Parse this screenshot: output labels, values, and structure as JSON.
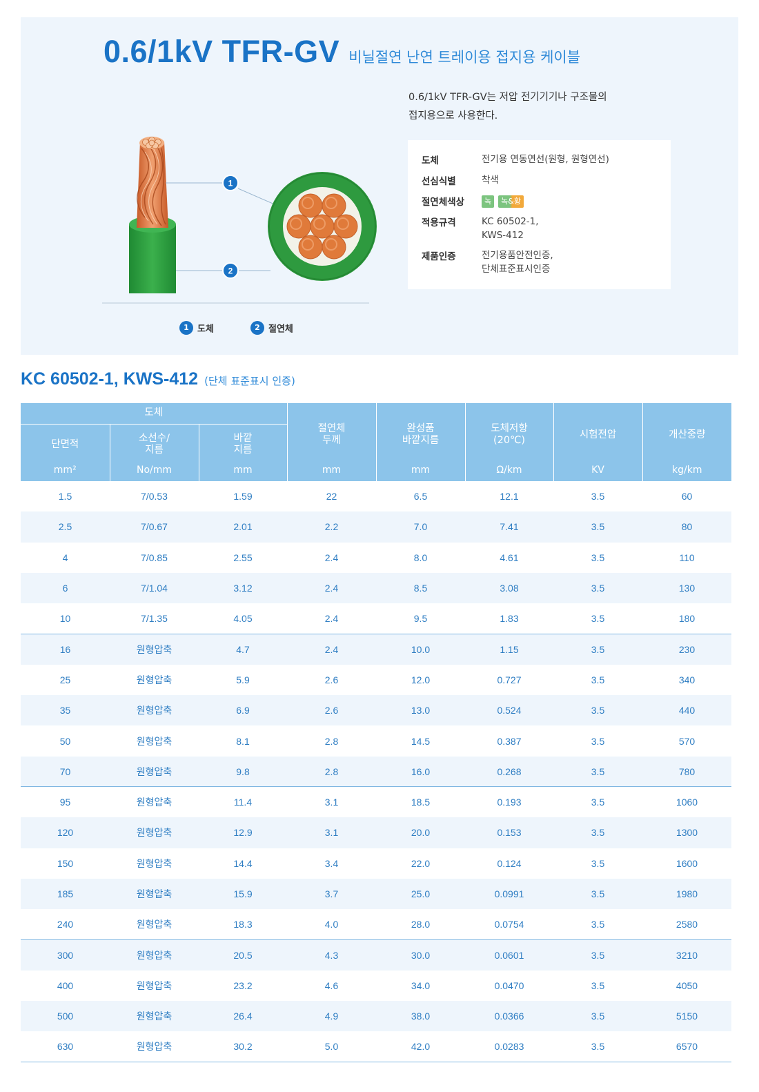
{
  "product": {
    "title": "0.6/1kV TFR-GV",
    "subtitle": "비닐절연 난연 트레이용 접지용 케이블",
    "intro_line1": "0.6/1kV TFR-GV는 저압 전기기기나 구조물의",
    "intro_line2": "접지용으로 사용한다."
  },
  "specs": {
    "conductor_label": "도체",
    "conductor_value": "전기용 연동연선(원형, 원형연선)",
    "core_id_label": "선심식별",
    "core_id_value": "착색",
    "insulation_color_label": "절연체색상",
    "badge_green": "녹",
    "badge_green_yellow": "녹&황",
    "standard_label": "적용규격",
    "standard_value_1": "KC 60502-1,",
    "standard_value_2": "KWS-412",
    "cert_label": "제품인증",
    "cert_value_1": "전기용품안전인증,",
    "cert_value_2": "단체표준표시인증"
  },
  "diagram": {
    "callout_1": "1",
    "callout_2": "2",
    "legend_1_num": "1",
    "legend_1_text": "도체",
    "legend_2_num": "2",
    "legend_2_text": "절연체",
    "colors": {
      "copper": "#e07a3a",
      "insulation": "#2e9a3f",
      "accent": "#1a73c6"
    }
  },
  "standard_section": {
    "title": "KC 60502-1, KWS-412",
    "subtitle": "(단체 표준표시 인증)"
  },
  "table": {
    "group_conductor": "도체",
    "col_area": "단면적",
    "col_strands_1": "소선수/",
    "col_strands_2": "지름",
    "col_outer_1": "바깥",
    "col_outer_2": "지름",
    "col_insul_1": "절연체",
    "col_insul_2": "두께",
    "col_finished_1": "완성품",
    "col_finished_2": "바깥지름",
    "col_resist_1": "도체저항",
    "col_resist_2": "(20℃)",
    "col_voltage": "시험전압",
    "col_weight": "개산중량",
    "units": [
      "mm²",
      "No/mm",
      "mm",
      "mm",
      "mm",
      "Ω/km",
      "KV",
      "kg/km"
    ],
    "rows": [
      [
        "1.5",
        "7/0.53",
        "1.59",
        "22",
        "6.5",
        "12.1",
        "3.5",
        "60"
      ],
      [
        "2.5",
        "7/0.67",
        "2.01",
        "2.2",
        "7.0",
        "7.41",
        "3.5",
        "80"
      ],
      [
        "4",
        "7/0.85",
        "2.55",
        "2.4",
        "8.0",
        "4.61",
        "3.5",
        "110"
      ],
      [
        "6",
        "7/1.04",
        "3.12",
        "2.4",
        "8.5",
        "3.08",
        "3.5",
        "130"
      ],
      [
        "10",
        "7/1.35",
        "4.05",
        "2.4",
        "9.5",
        "1.83",
        "3.5",
        "180"
      ],
      [
        "16",
        "원형압축",
        "4.7",
        "2.4",
        "10.0",
        "1.15",
        "3.5",
        "230"
      ],
      [
        "25",
        "원형압축",
        "5.9",
        "2.6",
        "12.0",
        "0.727",
        "3.5",
        "340"
      ],
      [
        "35",
        "원형압축",
        "6.9",
        "2.6",
        "13.0",
        "0.524",
        "3.5",
        "440"
      ],
      [
        "50",
        "원형압축",
        "8.1",
        "2.8",
        "14.5",
        "0.387",
        "3.5",
        "570"
      ],
      [
        "70",
        "원형압축",
        "9.8",
        "2.8",
        "16.0",
        "0.268",
        "3.5",
        "780"
      ],
      [
        "95",
        "원형압축",
        "11.4",
        "3.1",
        "18.5",
        "0.193",
        "3.5",
        "1060"
      ],
      [
        "120",
        "원형압축",
        "12.9",
        "3.1",
        "20.0",
        "0.153",
        "3.5",
        "1300"
      ],
      [
        "150",
        "원형압축",
        "14.4",
        "3.4",
        "22.0",
        "0.124",
        "3.5",
        "1600"
      ],
      [
        "185",
        "원형압축",
        "15.9",
        "3.7",
        "25.0",
        "0.0991",
        "3.5",
        "1980"
      ],
      [
        "240",
        "원형압축",
        "18.3",
        "4.0",
        "28.0",
        "0.0754",
        "3.5",
        "2580"
      ],
      [
        "300",
        "원형압축",
        "20.5",
        "4.3",
        "30.0",
        "0.0601",
        "3.5",
        "3210"
      ],
      [
        "400",
        "원형압축",
        "23.2",
        "4.6",
        "34.0",
        "0.0470",
        "3.5",
        "4050"
      ],
      [
        "500",
        "원형압축",
        "26.4",
        "4.9",
        "38.0",
        "0.0366",
        "3.5",
        "5150"
      ],
      [
        "630",
        "원형압축",
        "30.2",
        "5.0",
        "42.0",
        "0.0283",
        "3.5",
        "6570"
      ]
    ]
  }
}
